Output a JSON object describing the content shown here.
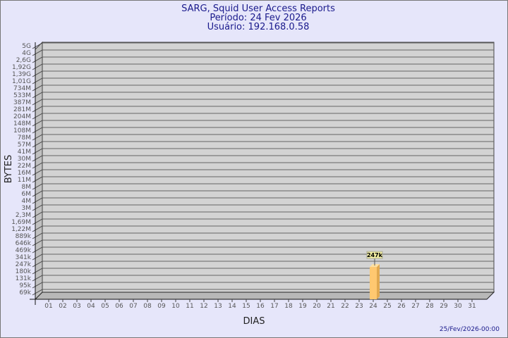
{
  "title": "SARG, Squid User Access Reports",
  "period": "Período: 24 Fev 2026",
  "user": "Usuário: 192.168.0.58",
  "timestamp": "25/Fev/2026-00:00",
  "chart_data": {
    "type": "bar",
    "xlabel": "DIAS",
    "ylabel": "BYTES",
    "categories": [
      "01",
      "02",
      "03",
      "04",
      "05",
      "06",
      "07",
      "08",
      "09",
      "10",
      "11",
      "12",
      "13",
      "14",
      "15",
      "16",
      "17",
      "18",
      "19",
      "20",
      "21",
      "22",
      "23",
      "24",
      "25",
      "26",
      "27",
      "28",
      "29",
      "30",
      "31"
    ],
    "y_ticks": [
      "69k",
      "95k",
      "131k",
      "180k",
      "247k",
      "341k",
      "469k",
      "646k",
      "889k",
      "1,22M",
      "1,69M",
      "2,3M",
      "3M",
      "4M",
      "6M",
      "8M",
      "11M",
      "16M",
      "22M",
      "30M",
      "41M",
      "57M",
      "78M",
      "108M",
      "148M",
      "204M",
      "281M",
      "387M",
      "533M",
      "734M",
      "1,01G",
      "1,39G",
      "1,92G",
      "2,6G",
      "4G",
      "5G"
    ],
    "y_scale": "log",
    "grid": true,
    "series": [
      {
        "values": [
          null,
          null,
          null,
          null,
          null,
          null,
          null,
          null,
          null,
          null,
          null,
          null,
          null,
          null,
          null,
          null,
          null,
          null,
          null,
          null,
          null,
          null,
          null,
          247000,
          null,
          null,
          null,
          null,
          null,
          null,
          null
        ]
      }
    ],
    "data_labels": [
      {
        "category": "24",
        "label": "247k"
      }
    ],
    "colors": {
      "bar": "#ffc870",
      "bar_side": "#e0a850",
      "wall": "#d3d3d3",
      "text": "#1a1a8c"
    }
  }
}
